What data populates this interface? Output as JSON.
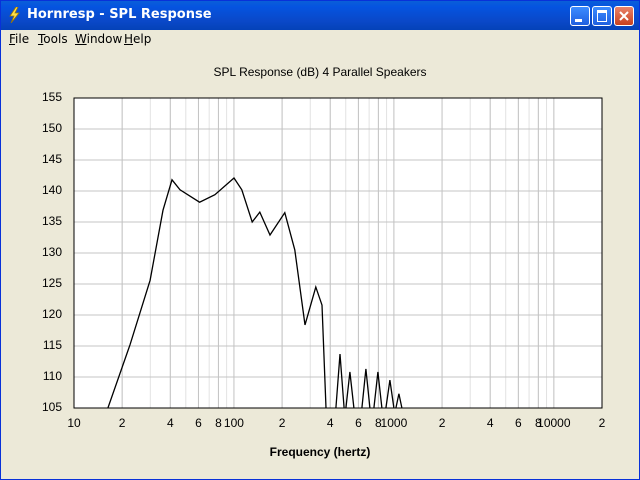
{
  "window": {
    "title": "Hornresp - SPL Response"
  },
  "menu": [
    "File",
    "Tools",
    "Window",
    "Help"
  ],
  "chart_data": {
    "type": "line",
    "title": "SPL Response (dB)   4 Parallel Speakers",
    "x_label": "Frequency (hertz)",
    "x_scale": "log",
    "grid": true,
    "color": "#000000",
    "xlim": [
      10,
      20000
    ],
    "ylim": [
      105,
      155
    ],
    "xticks": [
      10,
      {
        "value": 20,
        "label": "2"
      },
      {
        "value": 40,
        "label": "4"
      },
      {
        "value": 60,
        "label": "6"
      },
      {
        "value": 80,
        "label": "8"
      },
      100,
      {
        "value": 200,
        "label": "2"
      },
      {
        "value": 400,
        "label": "4"
      },
      {
        "value": 600,
        "label": "6"
      },
      {
        "value": 800,
        "label": "8"
      },
      1000,
      {
        "value": 2000,
        "label": "2"
      },
      {
        "value": 4000,
        "label": "4"
      },
      {
        "value": 6000,
        "label": "6"
      },
      {
        "value": 8000,
        "label": "8"
      },
      10000,
      {
        "value": 20000,
        "label": "2"
      }
    ],
    "yticks": [
      105,
      110,
      115,
      120,
      125,
      130,
      135,
      140,
      145,
      150,
      155
    ],
    "x": [
      16.3,
      22.4,
      29.9,
      36,
      41,
      46,
      61,
      76,
      100,
      112,
      130,
      145,
      168,
      208,
      240,
      278,
      325,
      355,
      376,
      null,
      434,
      460,
      488,
      null,
      501,
      531,
      562,
      null,
      631,
      668,
      708,
      null,
      750,
      794,
      841,
      null,
      891,
      944,
      1000,
      null,
      1029,
      1075,
      1122
    ],
    "values": [
      105,
      115.2,
      125.6,
      136.9,
      141.8,
      140.2,
      138.2,
      139.4,
      142.1,
      140.2,
      135,
      136.6,
      132.9,
      136.5,
      130.5,
      118.4,
      124.5,
      121.6,
      105,
      null,
      105,
      113.7,
      105,
      null,
      105,
      110.8,
      105,
      null,
      105,
      111.3,
      105,
      null,
      105,
      110.8,
      105,
      null,
      105,
      109.5,
      105,
      null,
      105,
      107.3,
      105
    ]
  }
}
